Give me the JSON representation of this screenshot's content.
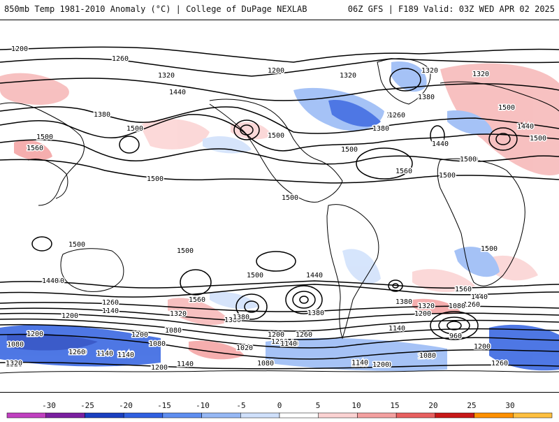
{
  "header": {
    "left": "850mb Temp 1981-2010 Anomaly (°C) | College of DuPage NEXLAB",
    "right": "06Z GFS | F189 Valid: 03Z WED APR 02 2025"
  },
  "legend": {
    "ticks": [
      "-30",
      "-25",
      "-20",
      "-15",
      "-10",
      "-5",
      "0",
      "5",
      "10",
      "15",
      "20",
      "25",
      "30"
    ],
    "colors": [
      "#c040c0",
      "#7a1fa0",
      "#1a3fc0",
      "#3060e0",
      "#5f8ef0",
      "#96b8f5",
      "#cfe0fb",
      "#ffffff",
      "#fbd2d2",
      "#f4a0a0",
      "#e86060",
      "#c81818",
      "#ff9000",
      "#ffc040"
    ]
  },
  "contour_labels": [
    {
      "text": "1200"
    },
    {
      "text": "1260"
    },
    {
      "text": "1320"
    },
    {
      "text": "1380"
    },
    {
      "text": "1440"
    },
    {
      "text": "1500"
    },
    {
      "text": "1560"
    },
    {
      "text": "1500"
    },
    {
      "text": "1500"
    },
    {
      "text": "1500"
    },
    {
      "text": "1260"
    },
    {
      "text": "1200"
    },
    {
      "text": "1320"
    },
    {
      "text": "1320"
    },
    {
      "text": "1320"
    },
    {
      "text": "1380"
    },
    {
      "text": "1500"
    },
    {
      "text": "1260"
    },
    {
      "text": "1380"
    },
    {
      "text": "1440"
    },
    {
      "text": "1500"
    },
    {
      "text": "1560"
    },
    {
      "text": "1500"
    },
    {
      "text": "1500"
    },
    {
      "text": "1440"
    },
    {
      "text": "1500"
    },
    {
      "text": "1500"
    },
    {
      "text": "1500"
    },
    {
      "text": "1500"
    },
    {
      "text": "1500"
    },
    {
      "text": "1500"
    },
    {
      "text": "1560"
    },
    {
      "text": "1440"
    },
    {
      "text": "1560"
    },
    {
      "text": "1500"
    },
    {
      "text": "1440"
    },
    {
      "text": "1380"
    },
    {
      "text": "1380"
    },
    {
      "text": "1320"
    },
    {
      "text": "1260"
    },
    {
      "text": "1200"
    },
    {
      "text": "1140"
    },
    {
      "text": "1080"
    },
    {
      "text": "1020"
    },
    {
      "text": "1080"
    },
    {
      "text": "1200"
    },
    {
      "text": "1260"
    },
    {
      "text": "1140"
    },
    {
      "text": "1200"
    },
    {
      "text": "1140"
    },
    {
      "text": "1080"
    },
    {
      "text": "1200"
    },
    {
      "text": "1140"
    },
    {
      "text": "1140"
    },
    {
      "text": "1380"
    },
    {
      "text": "1320"
    },
    {
      "text": "1260"
    },
    {
      "text": "1200"
    },
    {
      "text": "1140"
    },
    {
      "text": "1080"
    },
    {
      "text": "960"
    },
    {
      "text": "1560"
    },
    {
      "text": "1440"
    },
    {
      "text": "1500"
    },
    {
      "text": "1200"
    },
    {
      "text": "1080"
    },
    {
      "text": "1260"
    },
    {
      "text": "1320"
    },
    {
      "text": "1080"
    },
    {
      "text": "1200"
    },
    {
      "text": "1260"
    },
    {
      "text": "1140"
    },
    {
      "text": "1380"
    },
    {
      "text": "1260"
    },
    {
      "text": "1200"
    },
    {
      "text": "1140"
    },
    {
      "text": "1080"
    },
    {
      "text": "1200"
    },
    {
      "text": "1140"
    },
    {
      "text": "1080"
    },
    {
      "text": "1200"
    },
    {
      "text": "1320"
    },
    {
      "text": "1140"
    }
  ]
}
